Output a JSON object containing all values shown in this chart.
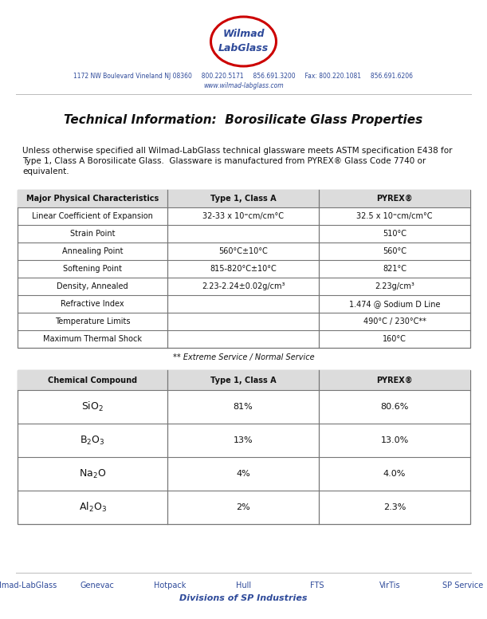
{
  "bg_color": "#f5f5f0",
  "page_color": "#ffffff",
  "title": "Technical Information:  Borosilicate Glass Properties",
  "body_text_line1": "Unless otherwise specified all Wilmad-LabGlass technical glassware meets ASTM specification E438 for",
  "body_text_line2": "Type 1, Class A Borosilicate Glass.  Glassware is manufactured from PYREX® Glass Code 7740 or",
  "body_text_line3": "equivalent.",
  "logo_text1": "Wilmad",
  "logo_text2": "LabGlass",
  "addr1": "1172 NW Boulevard Vineland NJ 08360",
  "addr2": "800.220.5171     856.691.3200     Fax: 800.220.1081     856.691.6206",
  "addr3": "www.wilmad-labglass.com",
  "table1_headers": [
    "Major Physical Characteristics",
    "Type 1, Class A",
    "PYREX®"
  ],
  "table1_rows": [
    [
      "Linear Coefficient of Expansion",
      "32-33 x 10⁼cm/cm°C",
      "32.5 x 10⁼cm/cm°C"
    ],
    [
      "Strain Point",
      "",
      "510°C"
    ],
    [
      "Annealing Point",
      "560°C±10°C",
      "560°C"
    ],
    [
      "Softening Point",
      "815-820°C±10°C",
      "821°C"
    ],
    [
      "Density, Annealed",
      "2.23-2.24±0.02g/cm³",
      "2.23g/cm³"
    ],
    [
      "Refractive Index",
      "",
      "1.474 @ Sodium D Line"
    ],
    [
      "Temperature Limits",
      "",
      "490°C / 230°C**"
    ],
    [
      "Maximum Thermal Shock",
      "",
      "160°C"
    ]
  ],
  "table1_footnote": "** Extreme Service / Normal Service",
  "table2_headers": [
    "Chemical Compound",
    "Type 1, Class A",
    "PYREX®"
  ],
  "table2_rows_col0": [
    "SiO$_2$",
    "B$_2$O$_3$",
    "Na$_2$O",
    "Al$_2$O$_3$"
  ],
  "table2_rows_col1": [
    "81%",
    "13%",
    "4%",
    "2%"
  ],
  "table2_rows_col2": [
    "80.6%",
    "13.0%",
    "4.0%",
    "2.3%"
  ],
  "footer_items": [
    "Wilmad-LabGlass",
    "Genevac",
    "Hotpack",
    "Hull",
    "FTS",
    "VirTis",
    "SP Service"
  ],
  "footer_division": "Divisions of SP Industries",
  "blue": "#2e4a9a",
  "red": "#cc0000",
  "dark": "#111111",
  "mid_gray": "#888888",
  "table_border": "#777777",
  "header_bg": "#dcdcdc"
}
